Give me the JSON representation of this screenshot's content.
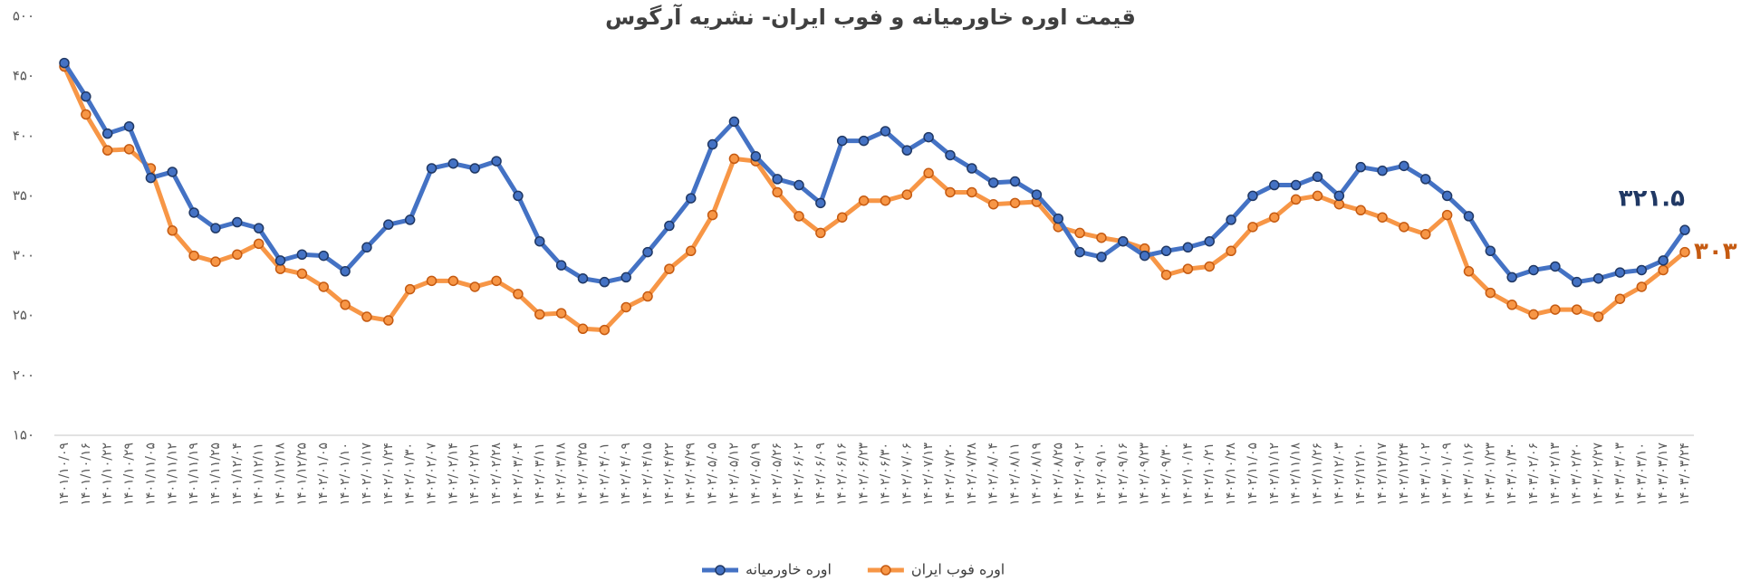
{
  "chart_data": {
    "type": "line",
    "title": "قیمت اوره خاورمیانه و فوب ایران- نشریه آرگوس",
    "categories": [
      "۱۴۰۱/۱۰/۰۹",
      "۱۴۰۱/۱۰/۱۶",
      "۱۴۰۱/۱۰/۲۲",
      "۱۴۰۱/۱۰/۲۹",
      "۱۴۰۱/۱۱/۰۵",
      "۱۴۰۱/۱۱/۱۲",
      "۱۴۰۱/۱۱/۱۹",
      "۱۴۰۱/۱۱/۲۵",
      "۱۴۰۱/۱۲/۰۴",
      "۱۴۰۱/۱۲/۱۱",
      "۱۴۰۱/۱۲/۱۸",
      "۱۴۰۱/۱۲/۲۵",
      "۱۴۰۲/۰۱/۰۵",
      "۱۴۰۲/۰۱/۱۰",
      "۱۴۰۲/۰۱/۱۷",
      "۱۴۰۲/۰۱/۲۴",
      "۱۴۰۲/۰۱/۳۰",
      "۱۴۰۲/۰۲/۰۷",
      "۱۴۰۲/۰۲/۱۴",
      "۱۴۰۲/۰۲/۲۱",
      "۱۴۰۲/۰۲/۲۸",
      "۱۴۰۲/۰۳/۰۴",
      "۱۴۰۲/۰۳/۱۱",
      "۱۴۰۲/۰۳/۱۸",
      "۱۴۰۲/۰۳/۲۵",
      "۱۴۰۲/۰۴/۰۱",
      "۱۴۰۲/۰۴/۰۹",
      "۱۴۰۲/۰۴/۱۵",
      "۱۴۰۲/۰۴/۲۲",
      "۱۴۰۲/۰۴/۲۹",
      "۱۴۰۲/۰۵/۰۵",
      "۱۴۰۲/۰۵/۱۲",
      "۱۴۰۲/۰۵/۱۹",
      "۱۴۰۲/۰۵/۲۶",
      "۱۴۰۲/۰۶/۰۲",
      "۱۴۰۲/۰۶/۰۹",
      "۱۴۰۲/۰۶/۱۶",
      "۱۴۰۲/۰۶/۲۳",
      "۱۴۰۲/۰۶/۳۰",
      "۱۴۰۲/۰۷/۰۶",
      "۱۴۰۲/۰۷/۱۳",
      "۱۴۰۲/۰۷/۲۰",
      "۱۴۰۲/۰۷/۲۸",
      "۱۴۰۲/۰۸/۰۴",
      "۱۴۰۲/۰۸/۱۱",
      "۱۴۰۲/۰۸/۱۹",
      "۱۴۰۲/۰۸/۲۵",
      "۱۴۰۲/۰۹/۰۲",
      "۱۴۰۲/۰۹/۱۰",
      "۱۴۰۲/۰۹/۱۶",
      "۱۴۰۲/۰۹/۲۳",
      "۱۴۰۲/۰۹/۳۰",
      "۱۴۰۲/۱۰/۱۴",
      "۱۴۰۲/۱۰/۲۱",
      "۱۴۰۲/۱۰/۲۸",
      "۱۴۰۲/۱۱/۰۵",
      "۱۴۰۲/۱۱/۱۲",
      "۱۴۰۲/۱۱/۱۸",
      "۱۴۰۲/۱۱/۲۶",
      "۱۴۰۲/۱۲/۰۳",
      "۱۴۰۲/۱۲/۱۰",
      "۱۴۰۲/۱۲/۱۷",
      "۱۴۰۲/۱۲/۲۴",
      "۱۴۰۳/۰۱/۰۲",
      "۱۴۰۳/۰۱/۰۹",
      "۱۴۰۳/۰۱/۱۶",
      "۱۴۰۳/۰۱/۲۳",
      "۱۴۰۳/۰۱/۳۰",
      "۱۴۰۳/۰۲/۰۶",
      "۱۴۰۳/۰۲/۱۳",
      "۱۴۰۳/۰۲/۲۰",
      "۱۴۰۳/۰۲/۲۷",
      "۱۴۰۳/۰۳/۰۳",
      "۱۴۰۳/۰۳/۱۰",
      "۱۴۰۳/۰۳/۱۷",
      "۱۴۰۳/۰۳/۲۴"
    ],
    "series": [
      {
        "name": "اوره خاورمیانه",
        "color": "#4472c4",
        "values": [
          461,
          433,
          402,
          408,
          365,
          370,
          336,
          323,
          328,
          323,
          296,
          301,
          300,
          287,
          307,
          326,
          330,
          373,
          377,
          373,
          379,
          350,
          312,
          292,
          281,
          278,
          282,
          303,
          325,
          348,
          393,
          412,
          383,
          364,
          359,
          344,
          396,
          396,
          404,
          388,
          399,
          384,
          373,
          361,
          362,
          351,
          331,
          303,
          299,
          312,
          300,
          304,
          307,
          312,
          330,
          350,
          359,
          359,
          366,
          350,
          374,
          371,
          375,
          364,
          350,
          333,
          304,
          282,
          288,
          291,
          278,
          281,
          286,
          288,
          296,
          321.5
        ],
        "value_labels": [
          null,
          null,
          null,
          null,
          null,
          null,
          null,
          null,
          null,
          null,
          null,
          null,
          null,
          null,
          null,
          null,
          null,
          null,
          null,
          null,
          null,
          null,
          null,
          null,
          null,
          null,
          null,
          null,
          null,
          null,
          null,
          null,
          null,
          null,
          null,
          null,
          null,
          null,
          null,
          null,
          null,
          null,
          null,
          null,
          null,
          null,
          null,
          null,
          null,
          null,
          null,
          null,
          null,
          null,
          null,
          null,
          null,
          null,
          null,
          null,
          null,
          null,
          null,
          null,
          null,
          null,
          null,
          null,
          null,
          null,
          null,
          null,
          null,
          null,
          null,
          "۳۲۱.۵"
        ]
      },
      {
        "name": "اوره فوب ایران",
        "color": "#f79646",
        "values": [
          458,
          418,
          388,
          389,
          373,
          321,
          300,
          295,
          301,
          310,
          289,
          285,
          274,
          259,
          249,
          246,
          272,
          279,
          279,
          274,
          279,
          268,
          251,
          252,
          239,
          238,
          257,
          266,
          289,
          304,
          334,
          381,
          379,
          353,
          333,
          319,
          332,
          346,
          346,
          351,
          369,
          353,
          353,
          343,
          344,
          345,
          324,
          319,
          315,
          312,
          306,
          284,
          289,
          291,
          304,
          324,
          332,
          347,
          350,
          343,
          338,
          332,
          324,
          318,
          334,
          287,
          269,
          259,
          251,
          255,
          255,
          249,
          264,
          274,
          288,
          303
        ],
        "value_labels": [
          null,
          null,
          null,
          null,
          null,
          null,
          null,
          null,
          null,
          null,
          null,
          null,
          null,
          null,
          null,
          null,
          null,
          null,
          null,
          null,
          null,
          null,
          null,
          null,
          null,
          null,
          null,
          null,
          null,
          null,
          null,
          null,
          null,
          null,
          null,
          null,
          null,
          null,
          null,
          null,
          null,
          null,
          null,
          null,
          null,
          null,
          null,
          null,
          null,
          null,
          null,
          null,
          null,
          null,
          null,
          null,
          null,
          null,
          null,
          null,
          null,
          null,
          null,
          null,
          null,
          null,
          null,
          null,
          null,
          null,
          null,
          null,
          null,
          null,
          null,
          "۳۰۳"
        ]
      }
    ],
    "ylim": [
      150,
      500
    ],
    "yticks": [
      {
        "value": 150,
        "label": "۱۵۰"
      },
      {
        "value": 200,
        "label": "۲۰۰"
      },
      {
        "value": 250,
        "label": "۲۵۰"
      },
      {
        "value": 300,
        "label": "۳۰۰"
      },
      {
        "value": 350,
        "label": "۳۵۰"
      },
      {
        "value": 400,
        "label": "۴۰۰"
      },
      {
        "value": 450,
        "label": "۴۵۰"
      },
      {
        "value": 500,
        "label": "۵۰۰"
      }
    ],
    "grid": false,
    "legend": "bottom"
  }
}
